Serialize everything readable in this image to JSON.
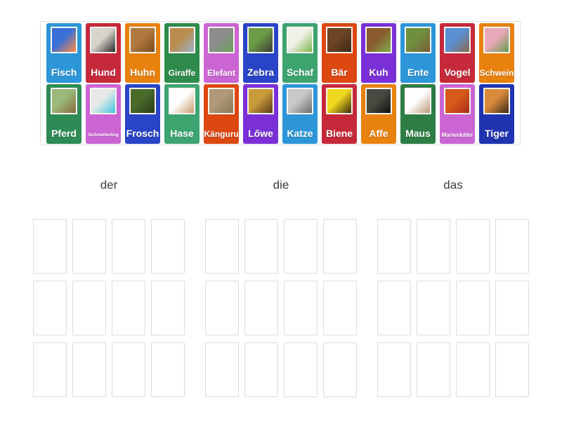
{
  "activity": {
    "type_label": "group-sort",
    "background_color": "#ffffff",
    "bank_border_color": "#e0e0e0",
    "slot_border_color": "#dcdcdc",
    "group_label_color": "#3c3c3c"
  },
  "card_bank": {
    "cards": [
      {
        "label": "Fisch",
        "color": "#2d96d9",
        "photo": [
          "#3a6fd8",
          "#ff8c42"
        ]
      },
      {
        "label": "Hund",
        "color": "#c5293a",
        "photo": [
          "#d8d4cc",
          "#2a2a2a"
        ]
      },
      {
        "label": "Huhn",
        "color": "#e8810e",
        "photo": [
          "#b0793f",
          "#7c4a1f"
        ]
      },
      {
        "label": "Giraffe",
        "color": "#2e8b4c",
        "photo": [
          "#b98c4e",
          "#9db3c8"
        ]
      },
      {
        "label": "Elefant",
        "color": "#cb65d3",
        "photo": [
          "#8c8c8c",
          "#6da05a"
        ]
      },
      {
        "label": "Zebra",
        "color": "#2944c6",
        "photo": [
          "#6b9b45",
          "#3a3a3a"
        ]
      },
      {
        "label": "Schaf",
        "color": "#3da470",
        "photo": [
          "#f0efe8",
          "#7ab648"
        ]
      },
      {
        "label": "Bär",
        "color": "#dc4712",
        "photo": [
          "#6b4423",
          "#3d2817"
        ]
      },
      {
        "label": "Kuh",
        "color": "#7b2fd6",
        "photo": [
          "#8a5a2e",
          "#7fae4e"
        ]
      },
      {
        "label": "Ente",
        "color": "#2d96d9",
        "photo": [
          "#6f8f3f",
          "#7a5c3a"
        ]
      },
      {
        "label": "Vogel",
        "color": "#c5293a",
        "photo": [
          "#5b8fd4",
          "#8a6a4a"
        ]
      },
      {
        "label": "Schwein",
        "color": "#e8810e",
        "photo": [
          "#e8a8b8",
          "#6a9a4a"
        ]
      },
      {
        "label": "Pferd",
        "color": "#2e8b55",
        "photo": [
          "#9ab87a",
          "#8a6a3a"
        ]
      },
      {
        "label": "Schmetterling",
        "color": "#cb65d3",
        "photo": [
          "#e8e8e8",
          "#3ec8e0"
        ]
      },
      {
        "label": "Frosch",
        "color": "#2944c6",
        "photo": [
          "#4a6a2a",
          "#2a3a1a"
        ]
      },
      {
        "label": "Hase",
        "color": "#3da470",
        "photo": [
          "#ffffff",
          "#c89a6a"
        ]
      },
      {
        "label": "Känguru",
        "color": "#dc4712",
        "photo": [
          "#b0987a",
          "#8a7a5a"
        ]
      },
      {
        "label": "Lőwe",
        "color": "#7b2fd6",
        "photo": [
          "#c89a3a",
          "#5a3a1a"
        ]
      },
      {
        "label": "Katze",
        "color": "#2d96d9",
        "photo": [
          "#c8c8c8",
          "#6a6a6a"
        ]
      },
      {
        "label": "Biene",
        "color": "#c5293a",
        "photo": [
          "#f0d820",
          "#3a2a0a"
        ]
      },
      {
        "label": "Affe",
        "color": "#e8810e",
        "photo": [
          "#4a4a42",
          "#101010"
        ]
      },
      {
        "label": "Maus",
        "color": "#2e7d44",
        "photo": [
          "#ffffff",
          "#b89a7a"
        ]
      },
      {
        "label": "Marienkäfer",
        "color": "#cb65d3",
        "photo": [
          "#d85a1a",
          "#a82a1a"
        ]
      },
      {
        "label": "Tiger",
        "color": "#2033b0",
        "photo": [
          "#d88a3a",
          "#3a2a1a"
        ]
      }
    ]
  },
  "groups": [
    {
      "label": "der",
      "slot_count": 12
    },
    {
      "label": "die",
      "slot_count": 12
    },
    {
      "label": "das",
      "slot_count": 12
    }
  ]
}
